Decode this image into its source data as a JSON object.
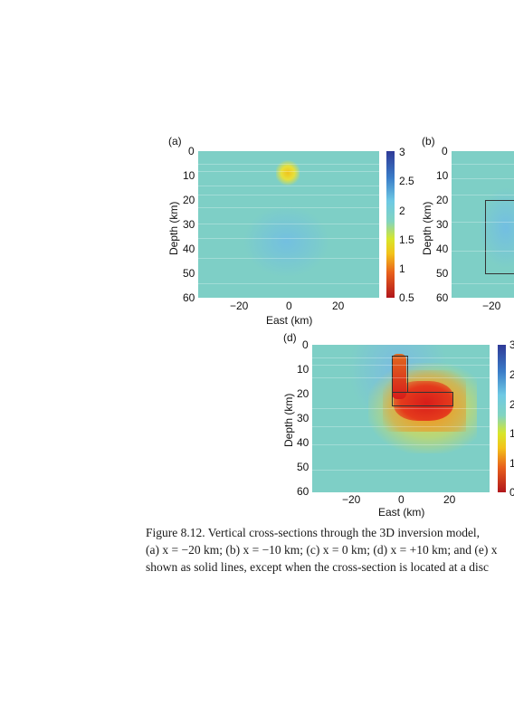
{
  "figure": {
    "panels": [
      {
        "label": "(a)",
        "xlabel": "East (km)",
        "ylabel": "Depth (km)"
      },
      {
        "label": "(b)",
        "xlabel": "",
        "ylabel": "Depth (km)"
      },
      {
        "label": "(d)",
        "xlabel": "East (km)",
        "ylabel": "Depth (km)"
      }
    ],
    "depth_ticks": [
      "0",
      "10",
      "20",
      "30",
      "40",
      "50",
      "60"
    ],
    "east_ticks_a": [
      "−20",
      "0",
      "20"
    ],
    "east_ticks_b": [
      "−20"
    ],
    "east_ticks_d": [
      "−20",
      "0",
      "20"
    ],
    "colorbar_ticks_a": [
      "3",
      "2.5",
      "2",
      "1.5",
      "1",
      "0.5"
    ],
    "colorbar_ticks_d": [
      "3",
      "2",
      "2",
      "1",
      "1",
      "0"
    ]
  },
  "caption": {
    "line1": "Figure 8.12. Vertical cross-sections through the 3D inversion model,",
    "line2": "(a) x = −20 km; (b) x = −10 km; (c) x = 0 km; (d) x = +10 km; and (e) x",
    "line3": "shown as solid lines, except when the cross-section is located at a disc"
  },
  "colors": {
    "background_field": "#7fd3c4",
    "colorbar": [
      "#2f3a97",
      "#3a78c8",
      "#6fc7e6",
      "#7fd3c4",
      "#d7e62b",
      "#f0c51b",
      "#e8601c",
      "#b0171b"
    ]
  }
}
